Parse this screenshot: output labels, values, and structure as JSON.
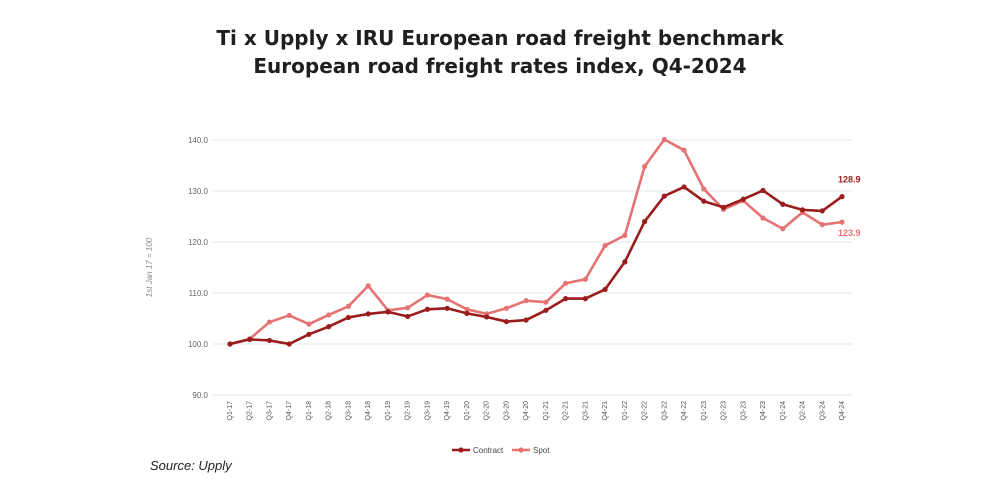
{
  "title_line1": "Ti x Upply x IRU European road freight benchmark",
  "title_line2": "European road freight rates index, Q4-2024",
  "source": "Source: Upply",
  "chart_data": {
    "type": "line",
    "title": "Ti x Upply x IRU European road freight benchmark / European road freight rates index, Q4-2024",
    "ylabel": "1st Jan 17 = 100",
    "xlabel": "",
    "ylim": [
      90,
      140
    ],
    "yticks": [
      90,
      100,
      110,
      120,
      130,
      140
    ],
    "grid": true,
    "legend": "bottom-center",
    "categories": [
      "Q1-17",
      "Q2-17",
      "Q3-17",
      "Q4-17",
      "Q1-18",
      "Q2-18",
      "Q3-18",
      "Q4-18",
      "Q1-19",
      "Q2-19",
      "Q3-19",
      "Q4-19",
      "Q1-20",
      "Q2-20",
      "Q3-20",
      "Q4-20",
      "Q1-21",
      "Q2-21",
      "Q3-21",
      "Q4-21",
      "Q1-22",
      "Q2-22",
      "Q3-22",
      "Q4-22",
      "Q1-23",
      "Q2-23",
      "Q3-23",
      "Q4-23",
      "Q1-24",
      "Q2-24",
      "Q3-24",
      "Q4-24"
    ],
    "series": [
      {
        "name": "Contract",
        "color": "#9b1c1c",
        "values": [
          100.0,
          100.9,
          100.7,
          100.0,
          101.9,
          103.4,
          105.2,
          105.9,
          106.3,
          105.4,
          106.8,
          107.0,
          106.0,
          105.3,
          104.4,
          104.7,
          106.6,
          108.9,
          108.9,
          110.7,
          116.1,
          124.0,
          129.0,
          130.8,
          128.0,
          126.8,
          128.4,
          130.1,
          127.4,
          126.3,
          126.1,
          128.9
        ]
      },
      {
        "name": "Spot",
        "color": "#e57373",
        "values": [
          100.0,
          101.0,
          104.3,
          105.6,
          103.9,
          105.7,
          107.4,
          111.4,
          106.6,
          107.1,
          109.6,
          108.8,
          106.8,
          105.9,
          107.0,
          108.5,
          108.2,
          111.9,
          112.7,
          119.3,
          121.3,
          134.8,
          140.1,
          138.0,
          130.4,
          126.4,
          128.1,
          124.7,
          122.6,
          125.8,
          123.4,
          123.9
        ]
      }
    ],
    "end_labels": {
      "contract": "128.9",
      "spot": "123.9"
    }
  }
}
